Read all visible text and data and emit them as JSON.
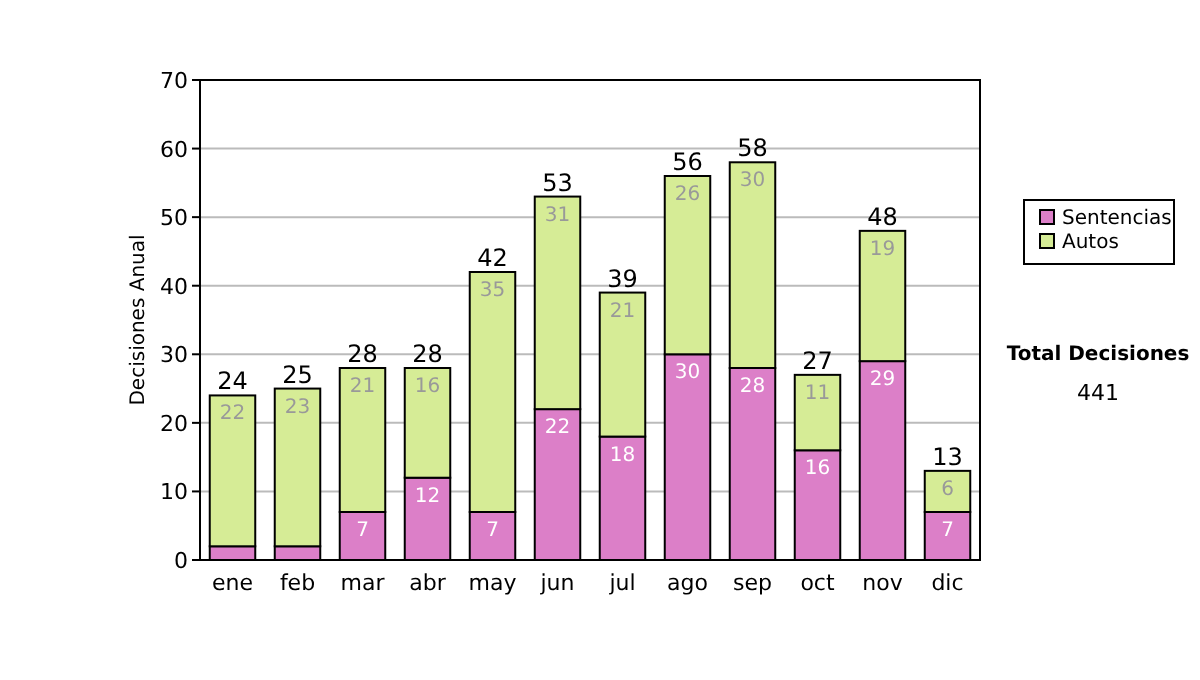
{
  "chart_data": {
    "type": "bar",
    "stacked": true,
    "ylabel": "Decisiones Anual",
    "categories": [
      "ene",
      "feb",
      "mar",
      "abr",
      "may",
      "jun",
      "jul",
      "ago",
      "sep",
      "oct",
      "nov",
      "dic"
    ],
    "series": [
      {
        "name": "Sentencias",
        "color": "#dc7fc8",
        "values": [
          2,
          2,
          7,
          12,
          7,
          22,
          18,
          30,
          28,
          16,
          29,
          7
        ],
        "value_labels": [
          null,
          null,
          "7",
          "12",
          "7",
          "22",
          "18",
          "30",
          "28",
          "16",
          "29",
          "7"
        ]
      },
      {
        "name": "Autos",
        "color": "#d6ec96",
        "values": [
          22,
          23,
          21,
          16,
          35,
          31,
          21,
          26,
          30,
          11,
          19,
          6
        ],
        "value_labels": [
          "22",
          "23",
          "21",
          "16",
          "35",
          "31",
          "21",
          "26",
          "30",
          "11",
          "19",
          "6"
        ]
      }
    ],
    "totals": [
      "24",
      "25",
      "28",
      "28",
      "42",
      "53",
      "39",
      "56",
      "58",
      "27",
      "48",
      "13"
    ],
    "ylim": [
      0,
      70
    ],
    "yticks": [
      0,
      10,
      20,
      30,
      40,
      50,
      60,
      70
    ],
    "grid": "y",
    "legend": "right",
    "annotations": [
      "Total Decisiones",
      "441"
    ]
  }
}
